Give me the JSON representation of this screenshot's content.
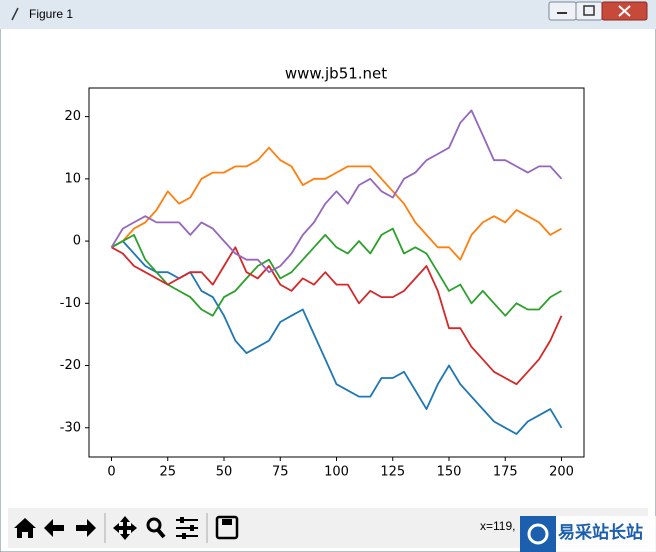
{
  "window": {
    "title": "Figure 1",
    "status": "x=119,"
  },
  "watermark": "易采站长站",
  "chart_data": {
    "type": "line",
    "title": "www.jb51.net",
    "x": [
      0,
      5,
      10,
      15,
      20,
      25,
      30,
      35,
      40,
      45,
      50,
      55,
      60,
      65,
      70,
      75,
      80,
      85,
      90,
      95,
      100,
      105,
      110,
      115,
      120,
      125,
      130,
      135,
      140,
      145,
      150,
      155,
      160,
      165,
      170,
      175,
      180,
      185,
      190,
      195,
      200
    ],
    "series": [
      {
        "color": "#1f77b4",
        "values": [
          -1,
          0,
          -2,
          -4,
          -5,
          -5,
          -6,
          -5,
          -8,
          -9,
          -12,
          -16,
          -18,
          -17,
          -16,
          -13,
          -12,
          -11,
          -15,
          -19,
          -23,
          -24,
          -25,
          -25,
          -22,
          -22,
          -21,
          -24,
          -27,
          -23,
          -20,
          -23,
          -25,
          -27,
          -29,
          -30,
          -31,
          -29,
          -28,
          -27,
          -30
        ]
      },
      {
        "color": "#ff7f0e",
        "values": [
          -1,
          0,
          2,
          3,
          5,
          8,
          6,
          7,
          10,
          11,
          11,
          12,
          12,
          13,
          15,
          13,
          12,
          9,
          10,
          10,
          11,
          12,
          12,
          12,
          10,
          8,
          6,
          3,
          1,
          -1,
          -1,
          -3,
          1,
          3,
          4,
          3,
          5,
          4,
          3,
          1,
          2
        ]
      },
      {
        "color": "#2ca02c",
        "values": [
          -1,
          0,
          1,
          -3,
          -5,
          -7,
          -8,
          -9,
          -11,
          -12,
          -9,
          -8,
          -6,
          -4,
          -3,
          -6,
          -5,
          -3,
          -1,
          1,
          -1,
          -2,
          0,
          -2,
          1,
          2,
          -2,
          -1,
          -2,
          -5,
          -8,
          -7,
          -10,
          -8,
          -10,
          -12,
          -10,
          -11,
          -11,
          -9,
          -8
        ]
      },
      {
        "color": "#d62728",
        "values": [
          -1,
          -2,
          -4,
          -5,
          -6,
          -7,
          -6,
          -5,
          -5,
          -7,
          -4,
          -1,
          -5,
          -6,
          -4,
          -7,
          -8,
          -6,
          -7,
          -5,
          -7,
          -7,
          -10,
          -8,
          -9,
          -9,
          -8,
          -6,
          -4,
          -8,
          -14,
          -14,
          -17,
          -19,
          -21,
          -22,
          -23,
          -21,
          -19,
          -16,
          -12
        ]
      },
      {
        "color": "#9467bd",
        "values": [
          -1,
          2,
          3,
          4,
          3,
          3,
          3,
          1,
          3,
          2,
          0,
          -2,
          -3,
          -3,
          -5,
          -4,
          -2,
          1,
          3,
          6,
          8,
          6,
          9,
          10,
          8,
          7,
          10,
          11,
          13,
          14,
          15,
          19,
          21,
          17,
          13,
          13,
          12,
          11,
          12,
          12,
          10
        ]
      }
    ],
    "xlim": [
      -10,
      210
    ],
    "ylim": [
      -34.7,
      24.6
    ],
    "xticks": [
      0,
      25,
      50,
      75,
      100,
      125,
      150,
      175,
      200
    ],
    "yticks": [
      -30,
      -20,
      -10,
      0,
      10,
      20
    ]
  }
}
